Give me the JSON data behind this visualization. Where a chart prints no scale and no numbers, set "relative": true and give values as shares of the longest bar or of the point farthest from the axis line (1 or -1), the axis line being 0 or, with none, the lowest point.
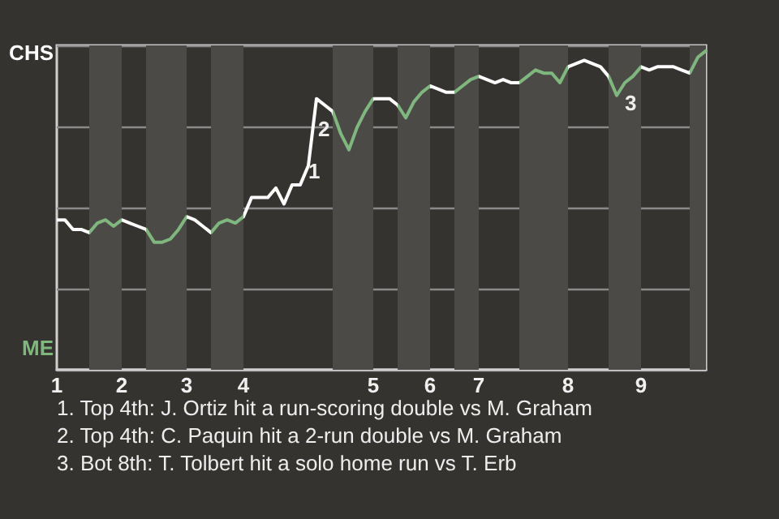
{
  "chart_data": {
    "type": "line",
    "marker": "none",
    "grid": "y",
    "relative": true,
    "categories": [
      "1",
      null,
      null,
      null,
      null,
      null,
      null,
      null,
      "2",
      null,
      null,
      null,
      null,
      null,
      null,
      null,
      "3",
      null,
      null,
      null,
      null,
      null,
      null,
      "4",
      null,
      null,
      null,
      null,
      null,
      null,
      null,
      null,
      null,
      null,
      null,
      null,
      null,
      null,
      null,
      "5",
      null,
      null,
      null,
      null,
      null,
      null,
      "6",
      null,
      null,
      null,
      null,
      null,
      "7",
      null,
      null,
      null,
      null,
      null,
      null,
      null,
      null,
      null,
      null,
      "8",
      null,
      null,
      null,
      null,
      null,
      null,
      null,
      null,
      "9",
      null,
      null,
      null,
      null,
      null,
      null,
      null,
      null
    ],
    "values": [
      0.47,
      0.47,
      0.44,
      0.44,
      0.43,
      0.46,
      0.47,
      0.45,
      0.47,
      0.46,
      0.45,
      0.44,
      0.4,
      0.4,
      0.41,
      0.44,
      0.48,
      0.47,
      0.45,
      0.43,
      0.46,
      0.47,
      0.46,
      0.48,
      0.54,
      0.54,
      0.54,
      0.57,
      0.52,
      0.58,
      0.58,
      0.64,
      0.85,
      0.83,
      0.81,
      0.74,
      0.69,
      0.76,
      0.81,
      0.85,
      0.85,
      0.85,
      0.83,
      0.79,
      0.84,
      0.87,
      0.89,
      0.88,
      0.87,
      0.87,
      0.89,
      0.91,
      0.92,
      0.91,
      0.9,
      0.91,
      0.9,
      0.9,
      0.92,
      0.94,
      0.93,
      0.93,
      0.9,
      0.95,
      0.96,
      0.97,
      0.96,
      0.95,
      0.92,
      0.86,
      0.9,
      0.92,
      0.95,
      0.94,
      0.95,
      0.95,
      0.95,
      0.94,
      0.93,
      0.98,
      1
    ],
    "colors": [
      "#ffffff",
      "#ffffff",
      "#ffffff",
      "#ffffff",
      "#7fb77e",
      "#7fb77e",
      "#7fb77e",
      "#7fb77e",
      "#ffffff",
      "#ffffff",
      "#ffffff",
      "#7fb77e",
      "#7fb77e",
      "#7fb77e",
      "#7fb77e",
      "#7fb77e",
      "#ffffff",
      "#ffffff",
      "#ffffff",
      "#7fb77e",
      "#7fb77e",
      "#7fb77e",
      "#7fb77e",
      "#ffffff",
      "#ffffff",
      "#ffffff",
      "#ffffff",
      "#ffffff",
      "#ffffff",
      "#ffffff",
      "#ffffff",
      "#ffffff",
      "#ffffff",
      "#ffffff",
      "#7fb77e",
      "#7fb77e",
      "#7fb77e",
      "#7fb77e",
      "#7fb77e",
      "#ffffff",
      "#ffffff",
      "#ffffff",
      "#7fb77e",
      "#7fb77e",
      "#7fb77e",
      "#7fb77e",
      "#ffffff",
      "#ffffff",
      "#ffffff",
      "#7fb77e",
      "#7fb77e",
      "#7fb77e",
      "#ffffff",
      "#ffffff",
      "#ffffff",
      "#ffffff",
      "#ffffff",
      "#7fb77e",
      "#7fb77e",
      "#7fb77e",
      "#7fb77e",
      "#7fb77e",
      "#7fb77e",
      "#ffffff",
      "#ffffff",
      "#ffffff",
      "#ffffff",
      "#ffffff",
      "#7fb77e",
      "#7fb77e",
      "#7fb77e",
      "#7fb77e",
      "#ffffff",
      "#ffffff",
      "#ffffff",
      "#ffffff",
      "#ffffff",
      "#ffffff",
      "#7fb77e",
      "#7fb77e",
      "#7fb77e"
    ],
    "annotations": [
      "CHS",
      "ME",
      "1",
      "2",
      "3",
      "1. Top 4th: J. Ortiz hit a run-scoring double vs M. Graham",
      "2. Top 4th: C. Paquin hit a 2-run double vs M. Graham",
      "3. Bot 8th: T. Tolbert hit a solo home run vs T. Erb"
    ]
  }
}
